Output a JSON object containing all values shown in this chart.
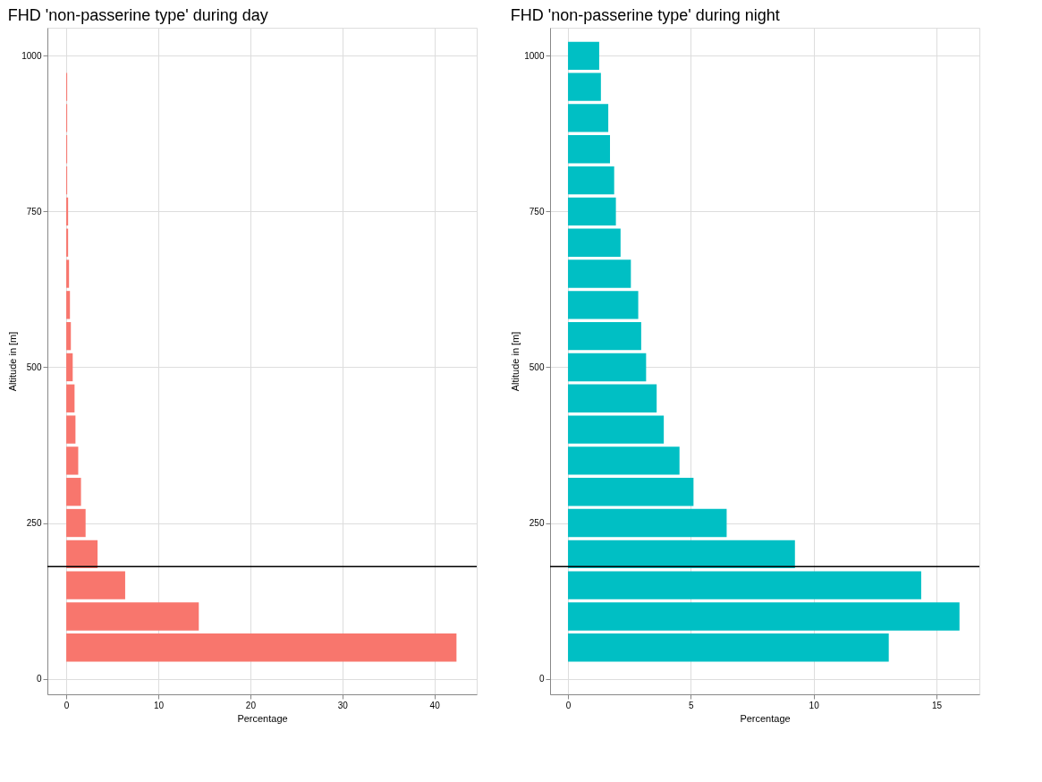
{
  "chart_data": [
    {
      "type": "bar",
      "orientation": "horizontal",
      "title": "FHD 'non-passerine type' during day",
      "xlabel": "Percentage",
      "ylabel": "Altitude in [m]",
      "x": [
        50,
        100,
        150,
        200,
        250,
        300,
        350,
        400,
        450,
        500,
        550,
        600,
        650,
        700,
        750,
        800,
        850,
        900,
        950
      ],
      "values": [
        42.4,
        14.4,
        6.4,
        3.4,
        2.1,
        1.6,
        1.3,
        1.0,
        0.9,
        0.7,
        0.5,
        0.4,
        0.3,
        0.2,
        0.2,
        0.1,
        0.1,
        0.1,
        0.1
      ],
      "color": "#f8766d",
      "xlim": [
        -2.05,
        44.6
      ],
      "xticks": [
        0,
        10,
        20,
        30,
        40
      ],
      "ylim": [
        -25,
        1045
      ],
      "yticks": [
        0,
        250,
        500,
        750,
        1000
      ],
      "ref_lines": [
        {
          "axis": "y",
          "value": 180,
          "color": "#000000"
        }
      ],
      "grid": true
    },
    {
      "type": "bar",
      "orientation": "horizontal",
      "title": "FHD 'non-passerine type' during night",
      "xlabel": "Percentage",
      "ylabel": "Altitude in [m]",
      "x": [
        50,
        100,
        150,
        200,
        250,
        300,
        350,
        400,
        450,
        500,
        550,
        600,
        650,
        700,
        750,
        800,
        850,
        900,
        950,
        1000
      ],
      "values": [
        13.06,
        15.94,
        14.38,
        9.24,
        6.46,
        5.11,
        4.54,
        3.9,
        3.61,
        3.18,
        2.98,
        2.86,
        2.56,
        2.14,
        1.95,
        1.88,
        1.71,
        1.64,
        1.34,
        1.27
      ],
      "color": "#00bfc4",
      "xlim": [
        -0.73,
        16.75
      ],
      "xticks": [
        0,
        5,
        10,
        15
      ],
      "ylim": [
        -25,
        1045
      ],
      "yticks": [
        0,
        250,
        500,
        750,
        1000
      ],
      "ref_lines": [
        {
          "axis": "y",
          "value": 180,
          "color": "#000000"
        }
      ],
      "grid": true
    }
  ]
}
